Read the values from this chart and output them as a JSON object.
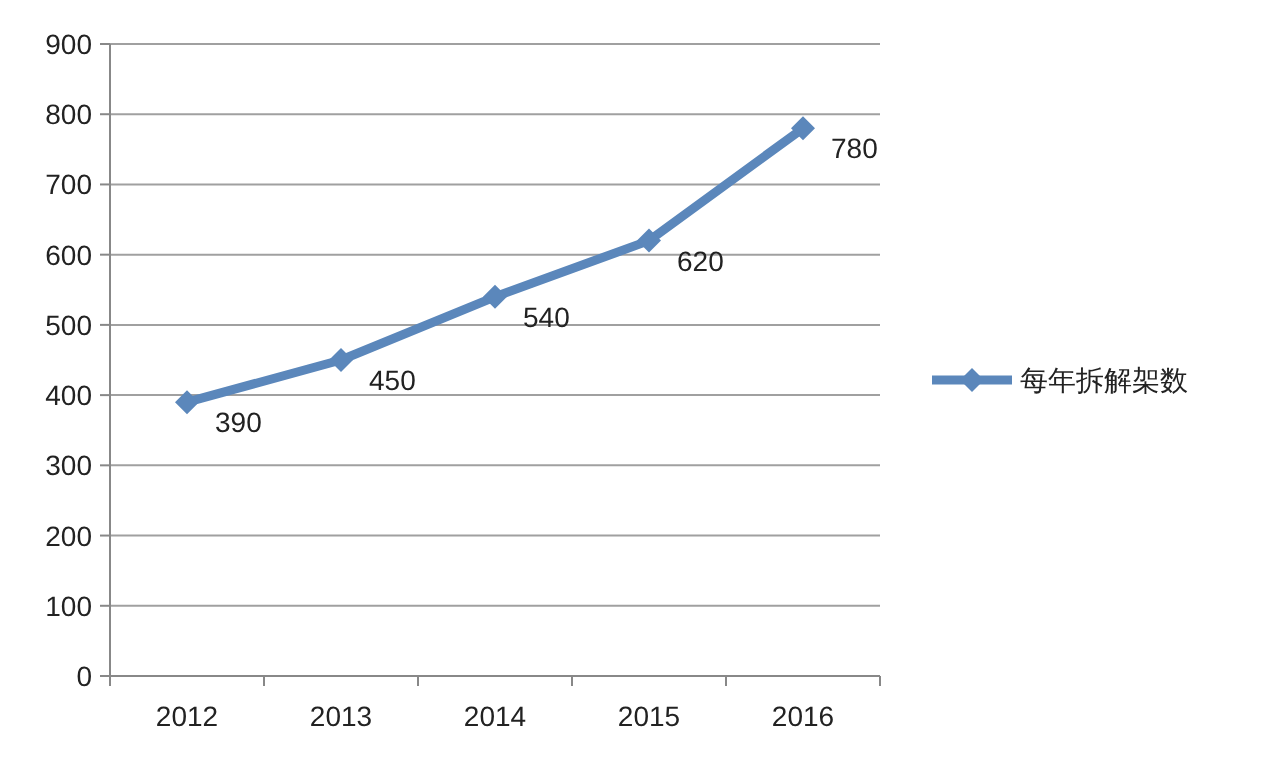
{
  "chart_data": {
    "type": "line",
    "categories": [
      "2012",
      "2013",
      "2014",
      "2015",
      "2016"
    ],
    "series": [
      {
        "name": "每年拆解架数",
        "color": "#5b87bb",
        "values": [
          390,
          450,
          540,
          620,
          780
        ]
      }
    ],
    "ylim": [
      0,
      900
    ],
    "yticks": [
      0,
      100,
      200,
      300,
      400,
      500,
      600,
      700,
      800,
      900
    ],
    "grid": "y",
    "legend": "right",
    "marker": "diamond",
    "data_labels": true
  }
}
